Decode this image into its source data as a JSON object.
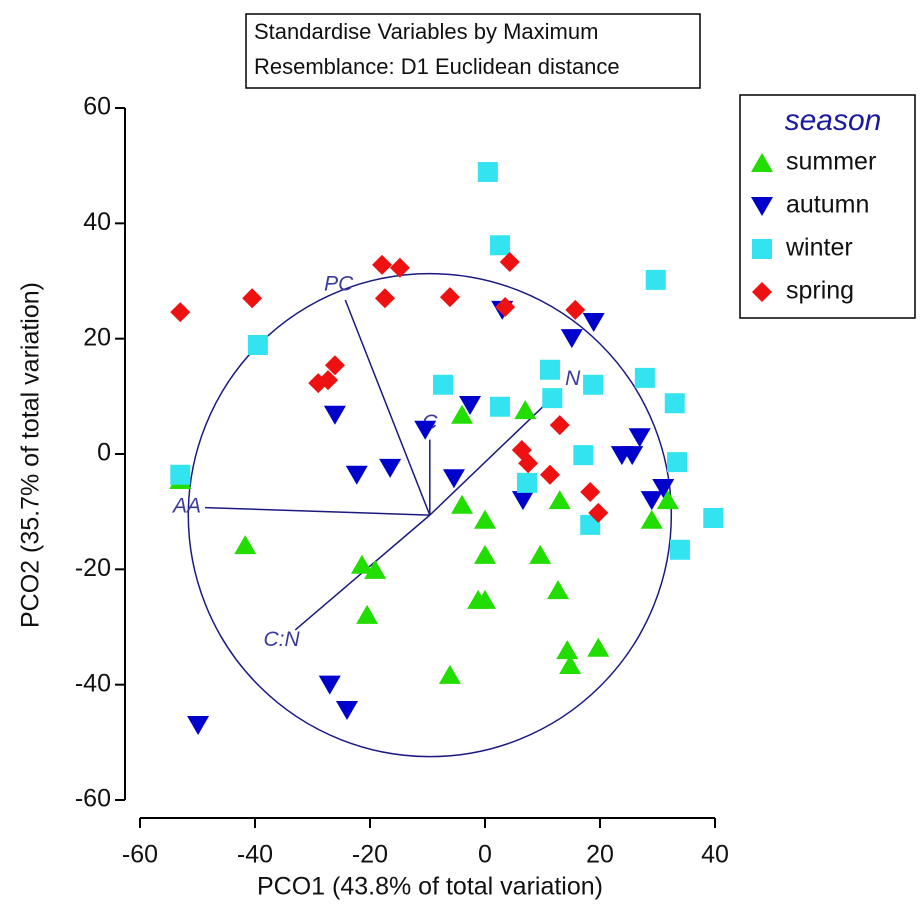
{
  "chart_data": {
    "type": "scatter",
    "title_lines": [
      "Standardise Variables by Maximum",
      "Resemblance: D1 Euclidean distance"
    ],
    "x_label": "PCO1 (43.8% of total variation)",
    "y_label": "PCO2 (35.7% of total variation)",
    "legend_title": "season",
    "legend_position": "right",
    "xlim": [
      -60,
      40
    ],
    "ylim": [
      -60,
      60
    ],
    "xticks": [
      -60,
      -40,
      -20,
      0,
      20,
      40
    ],
    "yticks": [
      -60,
      -40,
      -20,
      0,
      20,
      40,
      60
    ],
    "series": [
      {
        "name": "summer",
        "color": "#22dd00",
        "marker": "triangle-up",
        "x": [
          -53,
          -41.7,
          -21.4,
          -19.1,
          -20.5,
          -4,
          -4,
          0,
          0,
          -1.2,
          0,
          -6.1,
          7,
          9.6,
          13,
          12.7,
          14.3,
          14.8,
          19.7,
          29,
          31.8
        ],
        "y": [
          -4.5,
          -15.8,
          -19.2,
          -20.1,
          -27.9,
          6.8,
          -8.8,
          -11.4,
          -17.5,
          -25.3,
          -25.3,
          -38.3,
          7.6,
          -17.5,
          -8,
          -23.6,
          -34,
          -36.6,
          -33.6,
          -11.4,
          -8
        ]
      },
      {
        "name": "autumn",
        "color": "#0000cc",
        "marker": "triangle-down",
        "x": [
          -49.9,
          -26.1,
          -27,
          -24,
          -22.3,
          -16.5,
          -10.4,
          -5.4,
          -2.6,
          3,
          6.6,
          15.1,
          18.9,
          23.8,
          25.6,
          26.9,
          29,
          31
        ],
        "y": [
          -47,
          6.8,
          -40,
          -44.4,
          -3.6,
          -2.4,
          4.2,
          -4.2,
          8.5,
          25,
          -8,
          20.1,
          22.9,
          -0.2,
          -0.2,
          2.9,
          -8,
          -5.9
        ]
      },
      {
        "name": "winter",
        "color": "#33e4f0",
        "marker": "square",
        "x": [
          -53,
          -39.5,
          0.5,
          2.6,
          -7.3,
          2.6,
          11.3,
          11.7,
          18.8,
          17.1,
          7.3,
          18.3,
          29.7,
          27.8,
          33,
          33.4,
          33.9,
          39.7
        ],
        "y": [
          -3.6,
          18.9,
          48.9,
          36.2,
          12,
          8.2,
          14.6,
          9.7,
          12,
          -0.2,
          -5,
          -12.3,
          30.2,
          13.2,
          8.8,
          -1.4,
          -16.6,
          -11.1
        ]
      },
      {
        "name": "spring",
        "color": "#ee1111",
        "marker": "diamond",
        "x": [
          -53,
          -40.5,
          -17.9,
          -14.8,
          -17.4,
          -6.1,
          4.3,
          3.5,
          15.7,
          -29,
          -27.3,
          -26.1,
          6.4,
          7.5,
          13,
          11.3,
          18.3,
          19.7
        ],
        "y": [
          24.6,
          27,
          32.8,
          32.3,
          27,
          27.2,
          33.3,
          25.5,
          25,
          12.3,
          12.8,
          15.4,
          0.7,
          -1.6,
          5,
          -3.6,
          -6.6,
          -10.2
        ]
      }
    ],
    "circle": {
      "center": [
        -9.6,
        -10.6
      ],
      "radius": 42,
      "color": "#1a1a80"
    },
    "vectors": [
      {
        "label": "PC",
        "x": -24.3,
        "y": 26.7
      },
      {
        "label": "C",
        "x": -9.6,
        "y": 2.5
      },
      {
        "label": "N",
        "x": 13,
        "y": 11
      },
      {
        "label": "C:N",
        "x": -33,
        "y": -30.5
      },
      {
        "label": "AA",
        "x": -48.7,
        "y": -9.3
      }
    ]
  }
}
